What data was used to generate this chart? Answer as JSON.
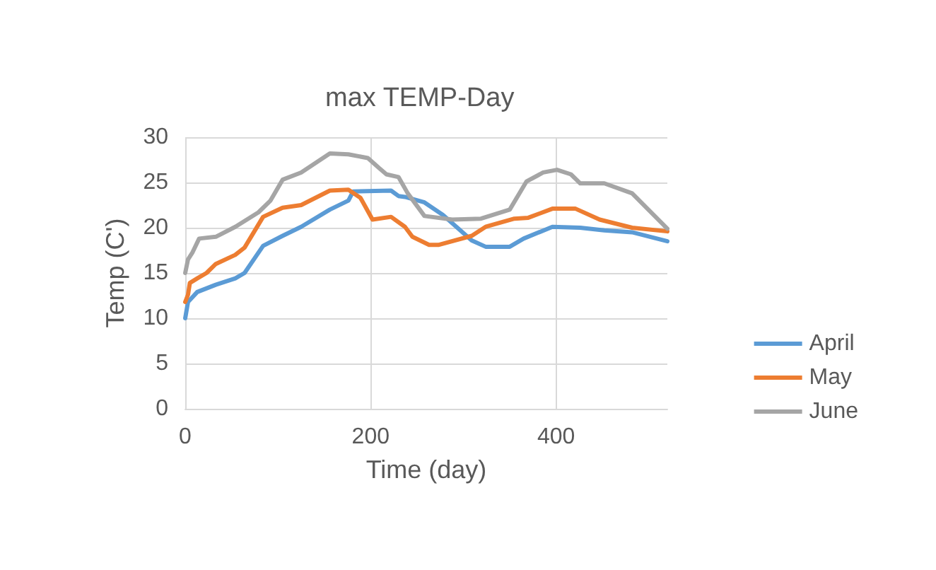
{
  "chart_data": {
    "type": "line",
    "title": "max TEMP-Day",
    "xlabel": "Time (day)",
    "ylabel": "Temp (C')",
    "xlim": [
      0,
      520
    ],
    "xticks": [
      0,
      200,
      400
    ],
    "ylim": [
      0,
      30
    ],
    "yticks": [
      0,
      5,
      10,
      15,
      20,
      25,
      30
    ],
    "grid": true,
    "legend": "right",
    "marker": "none",
    "line_style": "solid",
    "series": [
      {
        "name": "April",
        "color": "#5b9bd5",
        "x": [
          0,
          3,
          13,
          33,
          54,
          64,
          84,
          105,
          125,
          156,
          176,
          181,
          222,
          230,
          237,
          258,
          278,
          309,
          324,
          350,
          365,
          396,
          426,
          452,
          482,
          520
        ],
        "values": [
          10,
          11.8,
          12.9,
          13.7,
          14.4,
          15,
          18,
          19.1,
          20.1,
          22,
          23,
          24,
          24.1,
          23.5,
          23.4,
          22.8,
          21.4,
          18.6,
          17.9,
          17.9,
          18.8,
          20.1,
          20,
          19.7,
          19.5,
          18.5
        ]
      },
      {
        "name": "May",
        "color": "#ed7d31",
        "x": [
          0,
          3,
          5,
          13,
          23,
          33,
          54,
          64,
          84,
          105,
          125,
          156,
          176,
          189,
          202,
          222,
          237,
          245,
          263,
          273,
          309,
          324,
          355,
          370,
          396,
          421,
          447,
          482,
          520
        ],
        "values": [
          11.8,
          12.6,
          13.9,
          14.4,
          15,
          16,
          17,
          17.8,
          21.2,
          22.2,
          22.5,
          24.1,
          24.2,
          23.3,
          20.9,
          21.2,
          20.1,
          19,
          18.1,
          18.1,
          19.1,
          20.1,
          21,
          21.1,
          22.1,
          22.1,
          20.9,
          20,
          19.6
        ]
      },
      {
        "name": "June",
        "color": "#a5a5a5",
        "x": [
          0,
          3,
          8,
          15,
          33,
          54,
          79,
          92,
          105,
          125,
          156,
          176,
          197,
          209,
          217,
          230,
          240,
          258,
          288,
          319,
          350,
          368,
          386,
          401,
          416,
          426,
          452,
          482,
          520
        ],
        "values": [
          15,
          16.5,
          17.3,
          18.8,
          19,
          20.1,
          21.7,
          23,
          25.3,
          26.1,
          28.2,
          28.1,
          27.7,
          26.6,
          25.9,
          25.6,
          23.8,
          21.3,
          20.9,
          21,
          22,
          25.1,
          26.1,
          26.4,
          25.9,
          24.9,
          24.9,
          23.8,
          19.9
        ]
      }
    ]
  }
}
